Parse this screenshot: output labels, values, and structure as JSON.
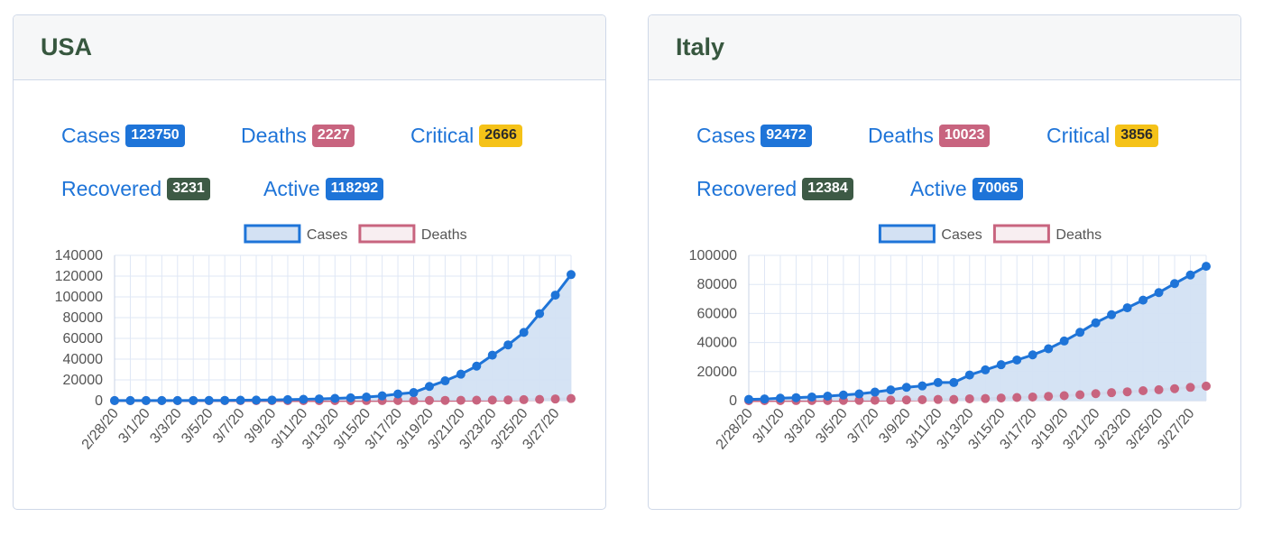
{
  "cards": [
    {
      "title": "USA",
      "stats": {
        "cases": {
          "label": "Cases",
          "value": "123750"
        },
        "deaths": {
          "label": "Deaths",
          "value": "2227"
        },
        "critical": {
          "label": "Critical",
          "value": "2666"
        },
        "recovered": {
          "label": "Recovered",
          "value": "3231"
        },
        "active": {
          "label": "Active",
          "value": "118292"
        }
      }
    },
    {
      "title": "Italy",
      "stats": {
        "cases": {
          "label": "Cases",
          "value": "92472"
        },
        "deaths": {
          "label": "Deaths",
          "value": "10023"
        },
        "critical": {
          "label": "Critical",
          "value": "3856"
        },
        "recovered": {
          "label": "Recovered",
          "value": "12384"
        },
        "active": {
          "label": "Active",
          "value": "70065"
        }
      }
    }
  ],
  "colors": {
    "cases": "#1e74d8",
    "cases_fill": "#d3e1f3",
    "deaths": "#c8647f",
    "deaths_fill": "#f8eef1",
    "grid": "#dfe7f5",
    "badge_critical": "#f5c218",
    "badge_recovered": "#3d5a45"
  },
  "chart_data": [
    {
      "type": "area",
      "legend": [
        "Cases",
        "Deaths"
      ],
      "legend_position": "top",
      "grid": true,
      "x": [
        "2/28/20",
        "2/29/20",
        "3/1/20",
        "3/2/20",
        "3/3/20",
        "3/4/20",
        "3/5/20",
        "3/6/20",
        "3/7/20",
        "3/8/20",
        "3/9/20",
        "3/10/20",
        "3/11/20",
        "3/12/20",
        "3/13/20",
        "3/14/20",
        "3/15/20",
        "3/16/20",
        "3/17/20",
        "3/18/20",
        "3/19/20",
        "3/20/20",
        "3/21/20",
        "3/22/20",
        "3/23/20",
        "3/24/20",
        "3/25/20",
        "3/26/20",
        "3/27/20",
        "3/28/20"
      ],
      "x_tick_labels": [
        "2/28/20",
        "3/1/20",
        "3/3/20",
        "3/5/20",
        "3/7/20",
        "3/9/20",
        "3/11/20",
        "3/13/20",
        "3/15/20",
        "3/17/20",
        "3/19/20",
        "3/21/20",
        "3/23/20",
        "3/25/20",
        "3/27/20"
      ],
      "ylim": [
        0,
        140000
      ],
      "y_ticks": [
        0,
        20000,
        40000,
        60000,
        80000,
        100000,
        120000,
        140000
      ],
      "series": [
        {
          "name": "Cases",
          "values": [
            60,
            68,
            74,
            98,
            118,
            149,
            217,
            262,
            402,
            518,
            583,
            959,
            1281,
            1663,
            2179,
            2726,
            3499,
            4632,
            6421,
            7786,
            13680,
            19101,
            25493,
            33276,
            43847,
            53740,
            65778,
            83836,
            101657,
            121478
          ]
        },
        {
          "name": "Deaths",
          "values": [
            0,
            0,
            1,
            6,
            9,
            11,
            12,
            14,
            17,
            21,
            22,
            28,
            36,
            40,
            47,
            54,
            63,
            85,
            108,
            118,
            200,
            244,
            307,
            427,
            557,
            706,
            942,
            1209,
            1581,
            2026
          ]
        }
      ]
    },
    {
      "type": "area",
      "legend": [
        "Cases",
        "Deaths"
      ],
      "legend_position": "top",
      "grid": true,
      "x": [
        "2/28/20",
        "2/29/20",
        "3/1/20",
        "3/2/20",
        "3/3/20",
        "3/4/20",
        "3/5/20",
        "3/6/20",
        "3/7/20",
        "3/8/20",
        "3/9/20",
        "3/10/20",
        "3/11/20",
        "3/12/20",
        "3/13/20",
        "3/14/20",
        "3/15/20",
        "3/16/20",
        "3/17/20",
        "3/18/20",
        "3/19/20",
        "3/20/20",
        "3/21/20",
        "3/22/20",
        "3/23/20",
        "3/24/20",
        "3/25/20",
        "3/26/20",
        "3/27/20",
        "3/28/20"
      ],
      "x_tick_labels": [
        "2/28/20",
        "3/1/20",
        "3/3/20",
        "3/5/20",
        "3/7/20",
        "3/9/20",
        "3/11/20",
        "3/13/20",
        "3/15/20",
        "3/17/20",
        "3/19/20",
        "3/21/20",
        "3/23/20",
        "3/25/20",
        "3/27/20"
      ],
      "ylim": [
        0,
        100000
      ],
      "y_ticks": [
        0,
        20000,
        40000,
        60000,
        80000,
        100000
      ],
      "series": [
        {
          "name": "Cases",
          "values": [
            888,
            1128,
            1694,
            2036,
            2502,
            3089,
            3858,
            4636,
            5883,
            7375,
            9172,
            10149,
            12462,
            12462,
            17660,
            21157,
            24747,
            27980,
            31506,
            35713,
            41035,
            47021,
            53578,
            59138,
            63927,
            69176,
            74386,
            80589,
            86498,
            92472
          ]
        },
        {
          "name": "Deaths",
          "values": [
            21,
            29,
            34,
            52,
            79,
            107,
            148,
            197,
            233,
            366,
            463,
            631,
            827,
            827,
            1266,
            1441,
            1809,
            2158,
            2503,
            2978,
            3405,
            4032,
            4825,
            5476,
            6077,
            6820,
            7503,
            8215,
            9134,
            10023
          ]
        }
      ]
    }
  ]
}
